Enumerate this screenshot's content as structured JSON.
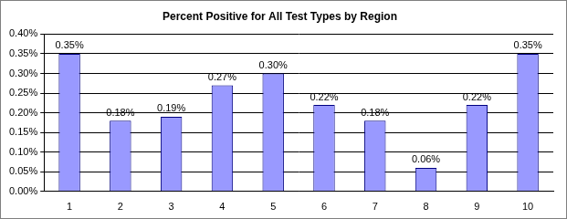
{
  "chart_data": {
    "type": "bar",
    "title": "Percent Positive for All Test Types by Region",
    "categories": [
      "1",
      "2",
      "3",
      "4",
      "5",
      "6",
      "7",
      "8",
      "9",
      "10"
    ],
    "values": [
      0.35,
      0.18,
      0.19,
      0.27,
      0.3,
      0.22,
      0.18,
      0.06,
      0.22,
      0.35
    ],
    "value_labels": [
      "0.35%",
      "0.18%",
      "0.19%",
      "0.27%",
      "0.30%",
      "0.22%",
      "0.18%",
      "0.06%",
      "0.22%",
      "0.35%"
    ],
    "color": "#9999ff",
    "ylim": [
      0,
      0.4
    ],
    "yticks": [
      {
        "value": 0,
        "label": "0.00%"
      },
      {
        "value": 0.05,
        "label": "0.05%"
      },
      {
        "value": 0.1,
        "label": "0.10%"
      },
      {
        "value": 0.15,
        "label": "0.15%"
      },
      {
        "value": 0.2,
        "label": "0.20%"
      },
      {
        "value": 0.25,
        "label": "0.25%"
      },
      {
        "value": 0.3,
        "label": "0.30%"
      },
      {
        "value": 0.35,
        "label": "0.35%"
      },
      {
        "value": 0.4,
        "label": "0.40%"
      }
    ],
    "grid": true,
    "data_labels": true
  }
}
